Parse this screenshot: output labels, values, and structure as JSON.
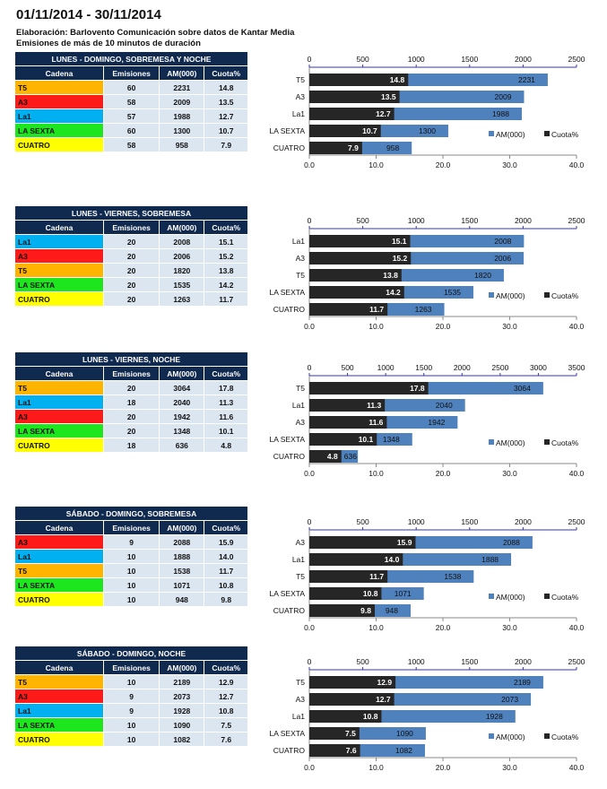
{
  "header": {
    "date_range": "01/11/2014 - 30/11/2014",
    "source": "Elaboración:  Barlovento Comunicación  sobre datos de Kantar Media",
    "note": "Emisiones de más de 10 minutos de duración"
  },
  "columns": [
    "Cadena",
    "Emisiones",
    "AM(000)",
    "Cuota%"
  ],
  "channel_colors": {
    "T5": "#ffb400",
    "A3": "#ff1a1a",
    "La1": "#00b0f0",
    "LA SEXTA": "#1ee61e",
    "CUATRO": "#ffff00"
  },
  "series_colors": {
    "AM(000)": "#4f81bd",
    "Cuota%": "#262626"
  },
  "chart_data": [
    {
      "type": "bar",
      "title": "LUNES - DOMINGO, SOBREMESA Y NOCHE",
      "categories": [
        "T5",
        "A3",
        "La1",
        "LA SEXTA",
        "CUATRO"
      ],
      "emisiones": [
        60,
        58,
        57,
        60,
        58
      ],
      "series": [
        {
          "name": "AM(000)",
          "values": [
            2231,
            2009,
            1988,
            1300,
            958
          ],
          "axis": "top",
          "xlim": [
            0,
            2500
          ],
          "ticks": [
            "0",
            "500",
            "1000",
            "1500",
            "2000",
            "2500"
          ]
        },
        {
          "name": "Cuota%",
          "values": [
            14.8,
            13.5,
            12.7,
            10.7,
            7.9
          ],
          "axis": "bottom",
          "xlim": [
            0,
            40
          ],
          "ticks": [
            "0.0",
            "10.0",
            "20.0",
            "30.0",
            "40.0"
          ]
        }
      ],
      "legend": "bottom-right"
    },
    {
      "type": "bar",
      "title": "LUNES - VIERNES, SOBREMESA",
      "categories": [
        "La1",
        "A3",
        "T5",
        "LA SEXTA",
        "CUATRO"
      ],
      "emisiones": [
        20,
        20,
        20,
        20,
        20
      ],
      "series": [
        {
          "name": "AM(000)",
          "values": [
            2008,
            2006,
            1820,
            1535,
            1263
          ],
          "axis": "top",
          "xlim": [
            0,
            2500
          ],
          "ticks": [
            "0",
            "500",
            "1000",
            "1500",
            "2000",
            "2500"
          ]
        },
        {
          "name": "Cuota%",
          "values": [
            15.1,
            15.2,
            13.8,
            14.2,
            11.7
          ],
          "axis": "bottom",
          "xlim": [
            0,
            40
          ],
          "ticks": [
            "0.0",
            "10.0",
            "20.0",
            "30.0",
            "40.0"
          ]
        }
      ],
      "legend": "bottom-right"
    },
    {
      "type": "bar",
      "title": "LUNES - VIERNES, NOCHE",
      "categories": [
        "T5",
        "La1",
        "A3",
        "LA SEXTA",
        "CUATRO"
      ],
      "emisiones": [
        20,
        18,
        20,
        20,
        18
      ],
      "series": [
        {
          "name": "AM(000)",
          "values": [
            3064,
            2040,
            1942,
            1348,
            636
          ],
          "axis": "top",
          "xlim": [
            0,
            3500
          ],
          "ticks": [
            "0",
            "500",
            "1000",
            "1500",
            "2000",
            "2500",
            "3000",
            "3500"
          ]
        },
        {
          "name": "Cuota%",
          "values": [
            17.8,
            11.3,
            11.6,
            10.1,
            4.8
          ],
          "axis": "bottom",
          "xlim": [
            0,
            40
          ],
          "ticks": [
            "0.0",
            "10.0",
            "20.0",
            "30.0",
            "40.0"
          ]
        }
      ],
      "legend": "bottom-right"
    },
    {
      "type": "bar",
      "title": "SÁBADO - DOMINGO, SOBREMESA",
      "categories": [
        "A3",
        "La1",
        "T5",
        "LA SEXTA",
        "CUATRO"
      ],
      "emisiones": [
        9,
        10,
        10,
        10,
        10
      ],
      "series": [
        {
          "name": "AM(000)",
          "values": [
            2088,
            1888,
            1538,
            1071,
            948
          ],
          "axis": "top",
          "xlim": [
            0,
            2500
          ],
          "ticks": [
            "0",
            "500",
            "1000",
            "1500",
            "2000",
            "2500"
          ]
        },
        {
          "name": "Cuota%",
          "values": [
            15.9,
            14.0,
            11.7,
            10.8,
            9.8
          ],
          "axis": "bottom",
          "xlim": [
            0,
            40
          ],
          "ticks": [
            "0.0",
            "10.0",
            "20.0",
            "30.0",
            "40.0"
          ]
        }
      ],
      "legend": "bottom-right"
    },
    {
      "type": "bar",
      "title": "SÁBADO - DOMINGO, NOCHE",
      "categories": [
        "T5",
        "A3",
        "La1",
        "LA SEXTA",
        "CUATRO"
      ],
      "emisiones": [
        10,
        9,
        9,
        10,
        10
      ],
      "series": [
        {
          "name": "AM(000)",
          "values": [
            2189,
            2073,
            1928,
            1090,
            1082
          ],
          "axis": "top",
          "xlim": [
            0,
            2500
          ],
          "ticks": [
            "0",
            "500",
            "1000",
            "1500",
            "2000",
            "2500"
          ]
        },
        {
          "name": "Cuota%",
          "values": [
            12.9,
            12.7,
            10.8,
            7.5,
            7.6
          ],
          "axis": "bottom",
          "xlim": [
            0,
            40
          ],
          "ticks": [
            "0.0",
            "10.0",
            "20.0",
            "30.0",
            "40.0"
          ]
        }
      ],
      "legend": "bottom-right"
    }
  ]
}
